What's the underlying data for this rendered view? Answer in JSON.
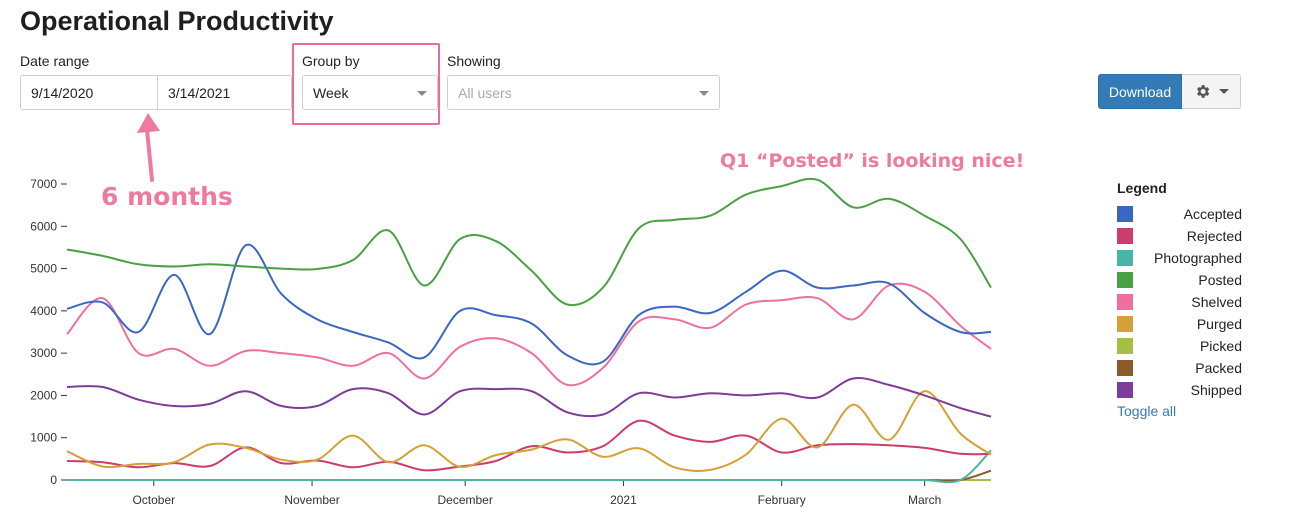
{
  "page": {
    "title": "Operational Productivity"
  },
  "filters": {
    "date_range": {
      "label": "Date range",
      "start": "9/14/2020",
      "end": "3/14/2021"
    },
    "group_by": {
      "label": "Group by",
      "value": "Week"
    },
    "showing": {
      "label": "Showing",
      "placeholder": "All users"
    }
  },
  "toolbar": {
    "download_label": "Download",
    "settings_icon": "gear-icon"
  },
  "annotations": {
    "months": "6 months",
    "posted": "Q1 “Posted” is looking nice!"
  },
  "legend": {
    "title": "Legend",
    "toggle_label": "Toggle all",
    "items": [
      {
        "label": "Accepted",
        "color": "#3a66c4"
      },
      {
        "label": "Rejected",
        "color": "#cc3c6c"
      },
      {
        "label": "Photographed",
        "color": "#4ab5a6"
      },
      {
        "label": "Posted",
        "color": "#4aa043"
      },
      {
        "label": "Shelved",
        "color": "#ef6fa0"
      },
      {
        "label": "Purged",
        "color": "#d4a037"
      },
      {
        "label": "Picked",
        "color": "#a3bf45"
      },
      {
        "label": "Packed",
        "color": "#8b5a2b"
      },
      {
        "label": "Shipped",
        "color": "#7d3c98"
      }
    ]
  },
  "chart_data": {
    "type": "line",
    "x": [
      "2020-09-14",
      "2020-09-21",
      "2020-09-28",
      "2020-10-05",
      "2020-10-12",
      "2020-10-19",
      "2020-10-26",
      "2020-11-02",
      "2020-11-09",
      "2020-11-16",
      "2020-11-23",
      "2020-11-30",
      "2020-12-07",
      "2020-12-14",
      "2020-12-21",
      "2020-12-28",
      "2021-01-04",
      "2021-01-11",
      "2021-01-18",
      "2021-01-25",
      "2021-02-01",
      "2021-02-08",
      "2021-02-15",
      "2021-02-22",
      "2021-03-01",
      "2021-03-08",
      "2021-03-14"
    ],
    "x_ticks": [
      "October",
      "November",
      "December",
      "2021",
      "February",
      "March"
    ],
    "ylim": [
      0,
      7000
    ],
    "y_ticks": [
      "0",
      "1000",
      "2000",
      "3000",
      "4000",
      "5000",
      "6000",
      "7000"
    ],
    "grid": false,
    "series": [
      {
        "name": "Accepted",
        "values": [
          4050,
          4200,
          3500,
          4850,
          3450,
          5550,
          4400,
          3800,
          3500,
          3250,
          2900,
          4000,
          3900,
          3700,
          2950,
          2800,
          3900,
          4100,
          3950,
          4450,
          4950,
          4550,
          4600,
          4650,
          3950,
          3500,
          3500
        ]
      },
      {
        "name": "Rejected",
        "values": [
          450,
          420,
          300,
          400,
          330,
          770,
          400,
          460,
          300,
          430,
          230,
          320,
          450,
          800,
          650,
          800,
          1400,
          1050,
          900,
          1050,
          650,
          820,
          850,
          820,
          760,
          620,
          620
        ]
      },
      {
        "name": "Photographed",
        "values": [
          0,
          0,
          0,
          0,
          0,
          0,
          0,
          0,
          0,
          0,
          0,
          0,
          0,
          0,
          0,
          0,
          0,
          0,
          0,
          0,
          0,
          0,
          0,
          0,
          0,
          0,
          700
        ]
      },
      {
        "name": "Posted",
        "values": [
          5450,
          5300,
          5100,
          5050,
          5100,
          5050,
          5000,
          4990,
          5200,
          5900,
          4600,
          5700,
          5650,
          4950,
          4150,
          4550,
          5950,
          6150,
          6250,
          6750,
          6950,
          7100,
          6450,
          6650,
          6250,
          5700,
          4550
        ]
      },
      {
        "name": "Shelved",
        "values": [
          3450,
          4300,
          3000,
          3100,
          2700,
          3050,
          3000,
          2900,
          2700,
          3000,
          2400,
          3150,
          3350,
          3000,
          2250,
          2650,
          3750,
          3800,
          3600,
          4150,
          4250,
          4300,
          3800,
          4600,
          4450,
          3650,
          3100
        ]
      },
      {
        "name": "Purged",
        "values": [
          680,
          320,
          380,
          420,
          840,
          760,
          480,
          480,
          1050,
          420,
          820,
          310,
          590,
          720,
          960,
          550,
          750,
          300,
          240,
          600,
          1450,
          770,
          1780,
          950,
          2100,
          1100,
          600
        ]
      },
      {
        "name": "Picked",
        "values": [
          0,
          0,
          0,
          0,
          0,
          0,
          0,
          0,
          0,
          0,
          0,
          0,
          0,
          0,
          0,
          0,
          0,
          0,
          0,
          0,
          0,
          0,
          0,
          0,
          0,
          0,
          0
        ]
      },
      {
        "name": "Packed",
        "values": [
          0,
          0,
          0,
          0,
          0,
          0,
          0,
          0,
          0,
          0,
          0,
          0,
          0,
          0,
          0,
          0,
          0,
          0,
          0,
          0,
          0,
          0,
          0,
          0,
          0,
          0,
          220
        ]
      },
      {
        "name": "Shipped",
        "values": [
          2200,
          2200,
          1900,
          1750,
          1800,
          2100,
          1750,
          1750,
          2150,
          2050,
          1550,
          2100,
          2150,
          2100,
          1600,
          1550,
          2050,
          1950,
          2050,
          2000,
          2050,
          1950,
          2400,
          2250,
          2000,
          1700,
          1500
        ]
      }
    ]
  }
}
